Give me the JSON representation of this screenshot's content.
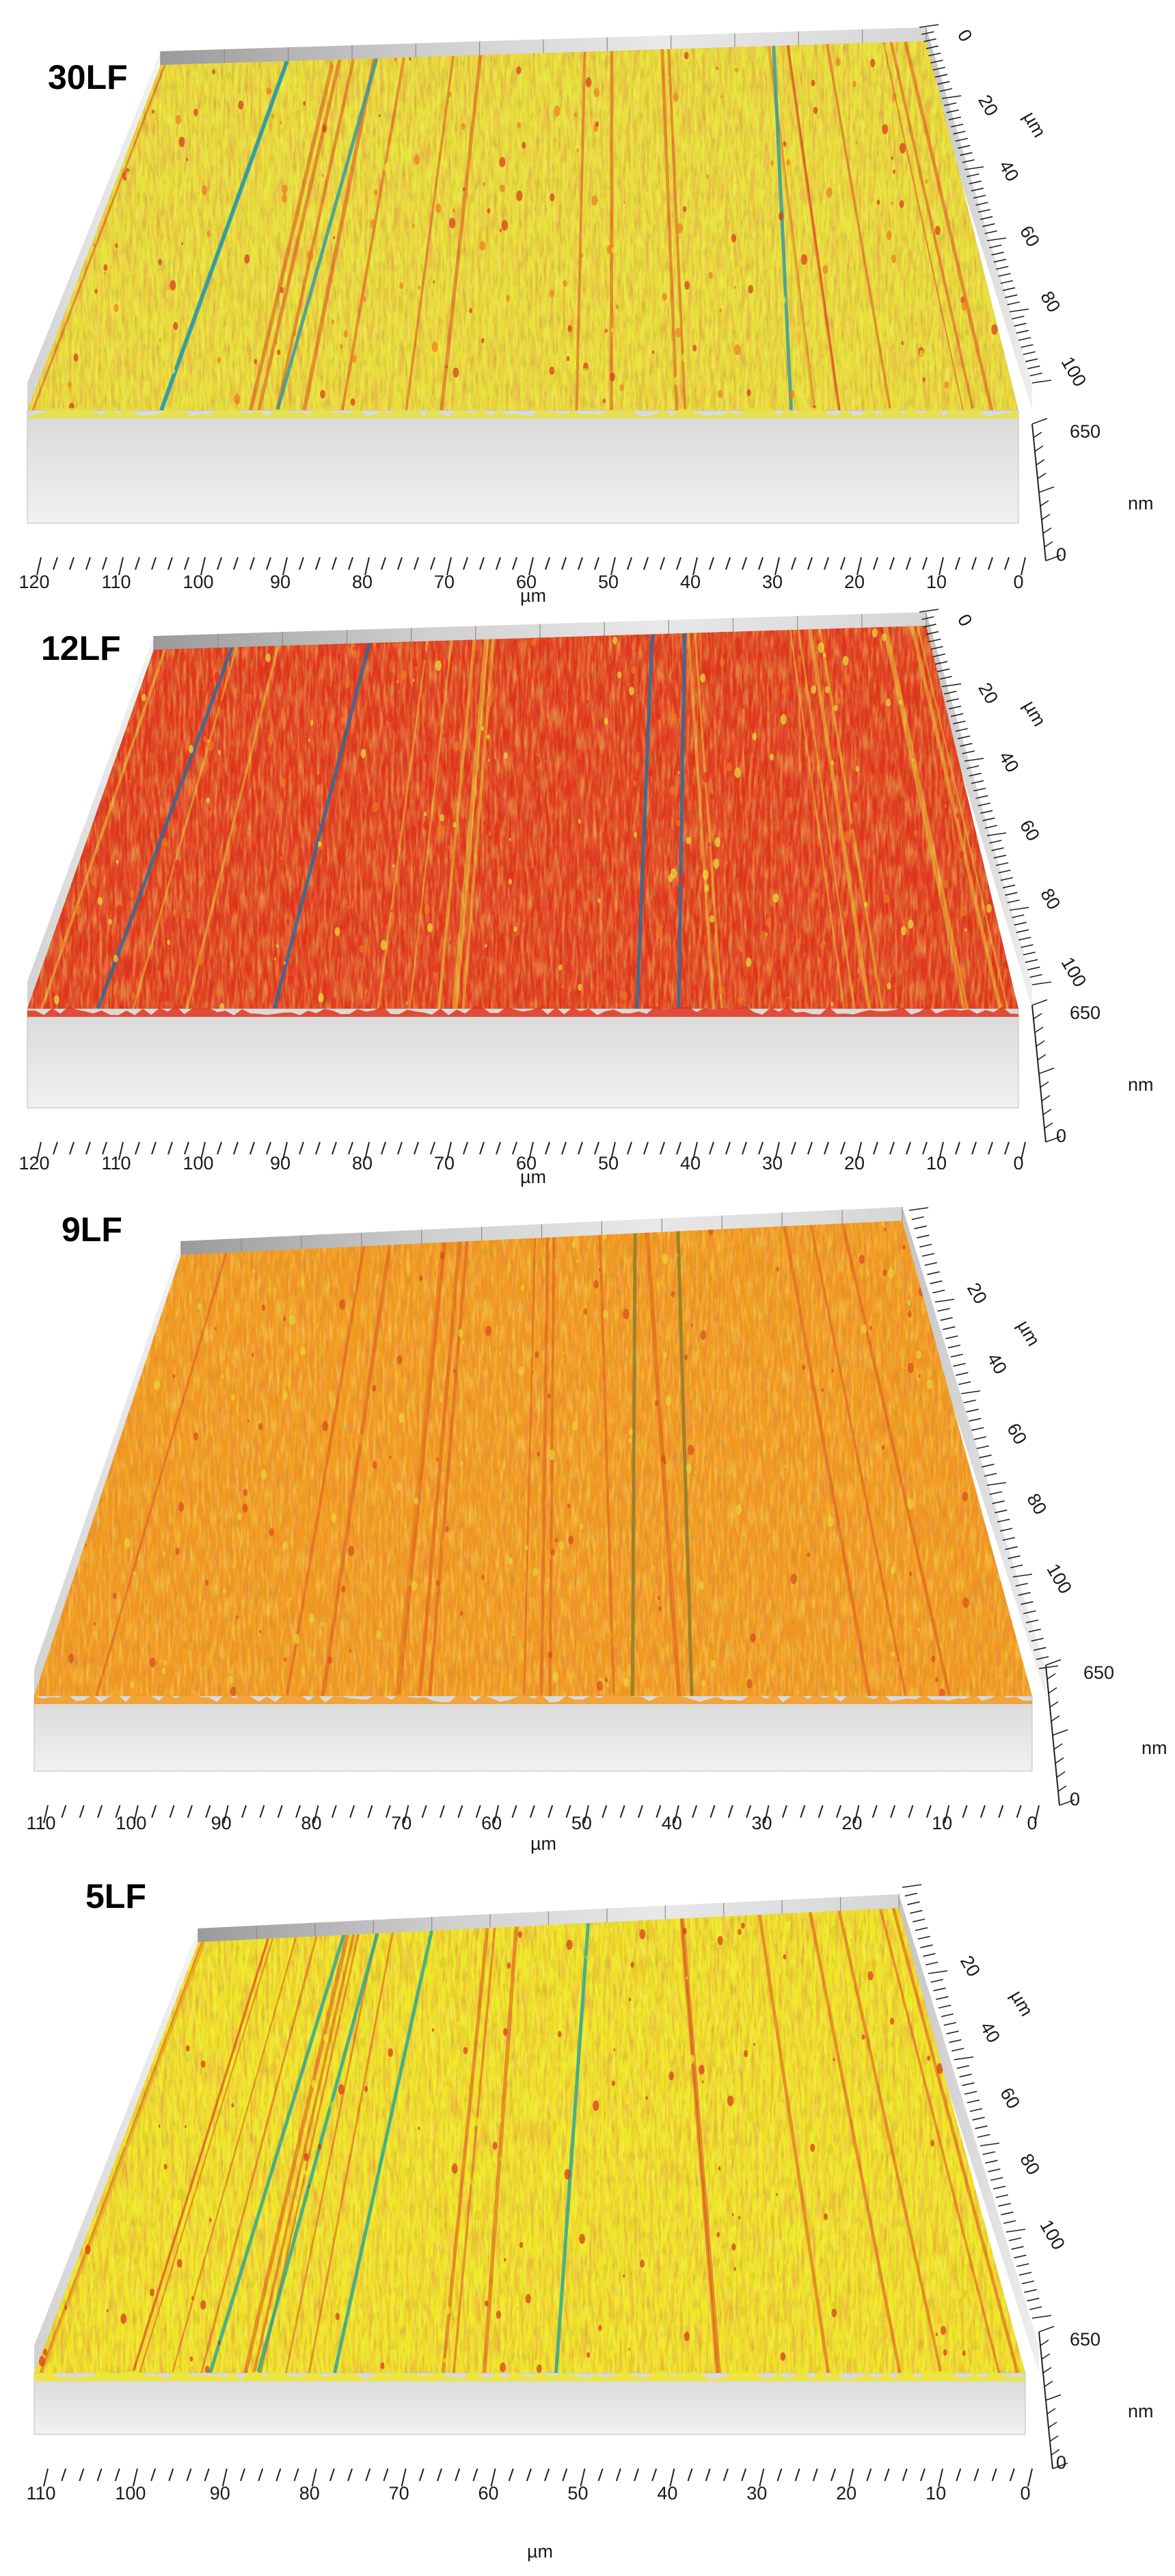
{
  "figure": {
    "panels": [
      {
        "label": "30LF",
        "x_ticks": [
          "120",
          "110",
          "100",
          "90",
          "80",
          "70",
          "60",
          "50",
          "40",
          "30",
          "20",
          "10",
          "0"
        ],
        "x_unit": "µm",
        "y_ticks": [
          "0",
          "20",
          "40",
          "60",
          "80",
          "100"
        ],
        "y_unit": "µm",
        "z_ticks": [
          "650",
          "0"
        ],
        "z_unit": "nm",
        "dominant_colors": [
          "#e8e23a",
          "#ef7a1f",
          "#d9321c",
          "#2b9aa6"
        ]
      },
      {
        "label": "12LF",
        "x_ticks": [
          "120",
          "110",
          "100",
          "90",
          "80",
          "70",
          "60",
          "50",
          "40",
          "30",
          "20",
          "10",
          "0"
        ],
        "x_unit": "µm",
        "y_ticks": [
          "0",
          "20",
          "40",
          "60",
          "80",
          "100"
        ],
        "y_unit": "µm",
        "z_ticks": [
          "650",
          "0"
        ],
        "z_unit": "nm",
        "dominant_colors": [
          "#e0321c",
          "#ef7a1f",
          "#e8e23a",
          "#1f6fa8"
        ]
      },
      {
        "label": "9LF",
        "x_ticks": [
          "110",
          "100",
          "90",
          "80",
          "70",
          "60",
          "50",
          "40",
          "30",
          "20",
          "10",
          "0"
        ],
        "x_unit": "µm",
        "y_ticks": [
          "20",
          "40",
          "60",
          "80",
          "100"
        ],
        "y_unit": "µm",
        "z_ticks": [
          "650",
          "0"
        ],
        "z_unit": "nm",
        "dominant_colors": [
          "#f39a1e",
          "#e8d43a",
          "#d94a1c",
          "#8a7a2a"
        ]
      },
      {
        "label": "5LF",
        "x_ticks": [
          "110",
          "100",
          "90",
          "80",
          "70",
          "60",
          "50",
          "40",
          "30",
          "20",
          "10",
          "0"
        ],
        "x_unit": "µm",
        "y_ticks": [
          "20",
          "40",
          "60",
          "80",
          "100"
        ],
        "y_unit": "µm",
        "z_ticks": [
          "650",
          "0"
        ],
        "z_unit": "nm",
        "dominant_colors": [
          "#f0e826",
          "#d8d21e",
          "#d9321c",
          "#1fa59a"
        ]
      }
    ]
  }
}
